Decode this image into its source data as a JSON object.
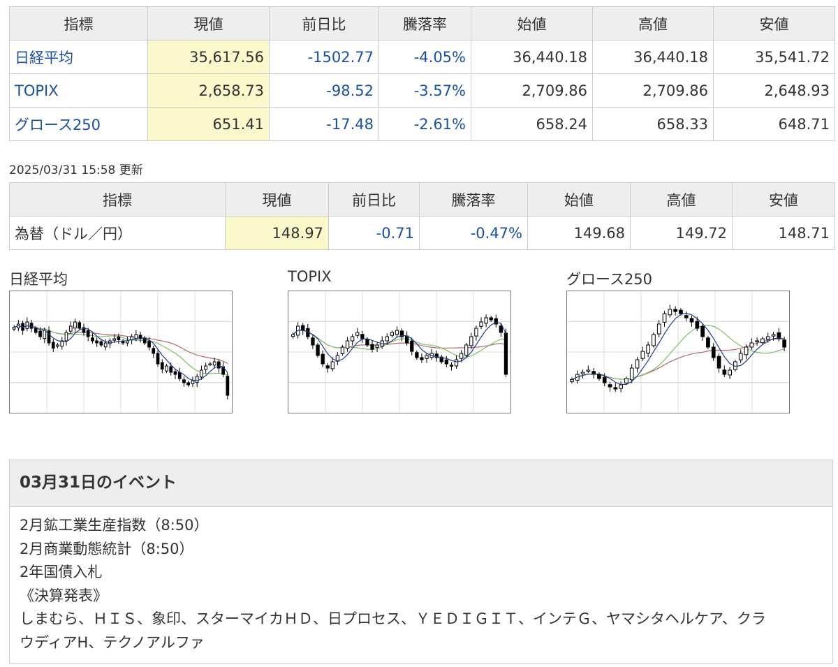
{
  "indices_table": {
    "headers": [
      "指標",
      "現値",
      "前日比",
      "騰落率",
      "始値",
      "高値",
      "安値"
    ],
    "rows": [
      {
        "name": "日経平均",
        "current": "35,617.56",
        "change": "-1502.77",
        "change_pct": "-4.05%",
        "open": "36,440.18",
        "high": "36,440.18",
        "low": "35,541.72"
      },
      {
        "name": "TOPIX",
        "current": "2,658.73",
        "change": "-98.52",
        "change_pct": "-3.57%",
        "open": "2,709.86",
        "high": "2,709.86",
        "low": "2,648.93"
      },
      {
        "name": "グロース250",
        "current": "651.41",
        "change": "-17.48",
        "change_pct": "-2.61%",
        "open": "658.24",
        "high": "658.33",
        "low": "648.71"
      }
    ]
  },
  "updated_text": "2025/03/31 15:58 更新",
  "fx_table": {
    "headers": [
      "指標",
      "現値",
      "前日比",
      "騰落率",
      "始値",
      "高値",
      "安値"
    ],
    "rows": [
      {
        "name": "為替（ドル／円）",
        "current": "148.97",
        "change": "-0.71",
        "change_pct": "-0.47%",
        "open": "149.68",
        "high": "149.72",
        "low": "148.71"
      }
    ]
  },
  "charts": [
    {
      "title": "日経平均"
    },
    {
      "title": "TOPIX"
    },
    {
      "title": "グロース250"
    }
  ],
  "events": {
    "heading": "03月31日のイベント",
    "items": [
      "2月鉱工業生産指数（8:50）",
      "2月商業動態統計（8:50）",
      "2年国債入札",
      "《決算発表》",
      "しまむら、ＨＩＳ、象印、スターマイカＨＤ、日プロセス、ＹＥＤＩＧＩＴ、インテＧ、ヤマシタヘルケア、クラ",
      "ウディアH、テクノアルファ"
    ]
  },
  "colors": {
    "link": "#1a4fa8",
    "negative": "#1a4fa8",
    "current_bg": "#fbf8cc",
    "header_bg": "#eeeeee",
    "ma_short": "#1f3f8a",
    "ma_mid": "#7fbf6a",
    "ma_long": "#b06a6a"
  },
  "chart_data": [
    {
      "type": "candlestick",
      "series": [
        {
          "name": "candles",
          "values": [
            0.75,
            0.78,
            0.72,
            0.8,
            0.74,
            0.7,
            0.66,
            0.72,
            0.6,
            0.55,
            0.58,
            0.62,
            0.7,
            0.76,
            0.8,
            0.74,
            0.7,
            0.66,
            0.62,
            0.6,
            0.58,
            0.6,
            0.62,
            0.64,
            0.63,
            0.6,
            0.62,
            0.66,
            0.68,
            0.64,
            0.6,
            0.56,
            0.5,
            0.4,
            0.35,
            0.38,
            0.32,
            0.3,
            0.26,
            0.22,
            0.2,
            0.24,
            0.28,
            0.34,
            0.38,
            0.4,
            0.42,
            0.36,
            0.3,
            0.1
          ]
        }
      ]
    },
    {
      "type": "candlestick",
      "series": [
        {
          "name": "candles",
          "values": [
            0.68,
            0.76,
            0.72,
            0.66,
            0.58,
            0.48,
            0.4,
            0.36,
            0.42,
            0.48,
            0.56,
            0.62,
            0.66,
            0.7,
            0.64,
            0.58,
            0.54,
            0.58,
            0.62,
            0.66,
            0.7,
            0.72,
            0.66,
            0.6,
            0.52,
            0.46,
            0.44,
            0.48,
            0.5,
            0.46,
            0.42,
            0.4,
            0.38,
            0.44,
            0.5,
            0.58,
            0.66,
            0.74,
            0.8,
            0.84,
            0.82,
            0.78,
            0.7,
            0.3
          ]
        }
      ]
    },
    {
      "type": "candlestick",
      "series": [
        {
          "name": "candles",
          "values": [
            0.25,
            0.3,
            0.32,
            0.34,
            0.3,
            0.26,
            0.22,
            0.18,
            0.16,
            0.2,
            0.26,
            0.36,
            0.44,
            0.52,
            0.58,
            0.68,
            0.78,
            0.88,
            0.92,
            0.9,
            0.88,
            0.84,
            0.8,
            0.74,
            0.66,
            0.56,
            0.46,
            0.36,
            0.3,
            0.34,
            0.42,
            0.5,
            0.56,
            0.6,
            0.62,
            0.64,
            0.66,
            0.68,
            0.64,
            0.56
          ]
        }
      ]
    }
  ]
}
